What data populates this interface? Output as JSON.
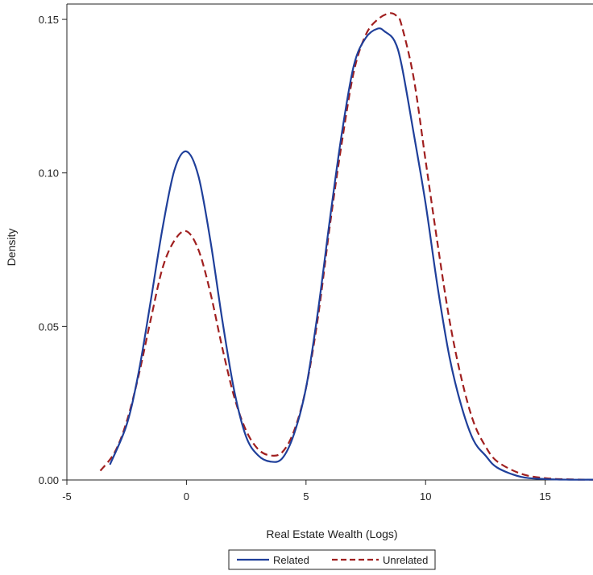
{
  "chart_data": {
    "type": "line",
    "xlabel": "Real Estate Wealth (Logs)",
    "ylabel": "Density",
    "xlim": [
      -5,
      17
    ],
    "ylim": [
      0,
      0.155
    ],
    "x_ticks": [
      "-5",
      "0",
      "5",
      "10",
      "15"
    ],
    "x_tick_values": [
      -5,
      0,
      5,
      10,
      15
    ],
    "y_ticks": [
      "0.00",
      "0.05",
      "0.10",
      "0.15"
    ],
    "y_tick_values": [
      0,
      0.05,
      0.1,
      0.15
    ],
    "grid": false,
    "legend_position": "bottom-center",
    "series": [
      {
        "name": "Related",
        "color": "#1f3f9a",
        "dash": "solid",
        "x": [
          -3.2,
          -2.5,
          -2,
          -1.5,
          -1,
          -0.5,
          0,
          0.5,
          1,
          1.5,
          2,
          2.5,
          3,
          3.5,
          4,
          4.5,
          5,
          5.5,
          6,
          6.5,
          7,
          7.5,
          8,
          8.3,
          8.7,
          9,
          9.5,
          10,
          10.5,
          11,
          11.5,
          12,
          12.5,
          13,
          14,
          15,
          16,
          17
        ],
        "y": [
          0.005,
          0.018,
          0.035,
          0.058,
          0.082,
          0.101,
          0.107,
          0.099,
          0.078,
          0.052,
          0.029,
          0.014,
          0.008,
          0.006,
          0.007,
          0.015,
          0.03,
          0.055,
          0.085,
          0.113,
          0.135,
          0.144,
          0.147,
          0.146,
          0.143,
          0.135,
          0.113,
          0.09,
          0.063,
          0.04,
          0.024,
          0.013,
          0.008,
          0.004,
          0.001,
          0.0003,
          0.0001,
          0.0001
        ]
      },
      {
        "name": "Unrelated",
        "color": "#a01f1f",
        "dash": "dashed",
        "x": [
          -3.6,
          -3,
          -2.5,
          -2,
          -1.5,
          -1,
          -0.5,
          0,
          0.5,
          1,
          1.5,
          2,
          2.5,
          3,
          3.5,
          4,
          4.5,
          5,
          5.5,
          6,
          6.5,
          7,
          7.5,
          8,
          8.5,
          8.8,
          9,
          9.5,
          10,
          10.5,
          11,
          11.5,
          12,
          12.5,
          13,
          14,
          15,
          16,
          17
        ],
        "y": [
          0.003,
          0.009,
          0.019,
          0.034,
          0.052,
          0.069,
          0.078,
          0.081,
          0.075,
          0.061,
          0.043,
          0.027,
          0.016,
          0.01,
          0.008,
          0.009,
          0.016,
          0.03,
          0.053,
          0.083,
          0.11,
          0.133,
          0.145,
          0.15,
          0.152,
          0.151,
          0.148,
          0.131,
          0.104,
          0.077,
          0.052,
          0.033,
          0.019,
          0.011,
          0.006,
          0.002,
          0.0006,
          0.0002,
          0.0001
        ]
      }
    ]
  }
}
